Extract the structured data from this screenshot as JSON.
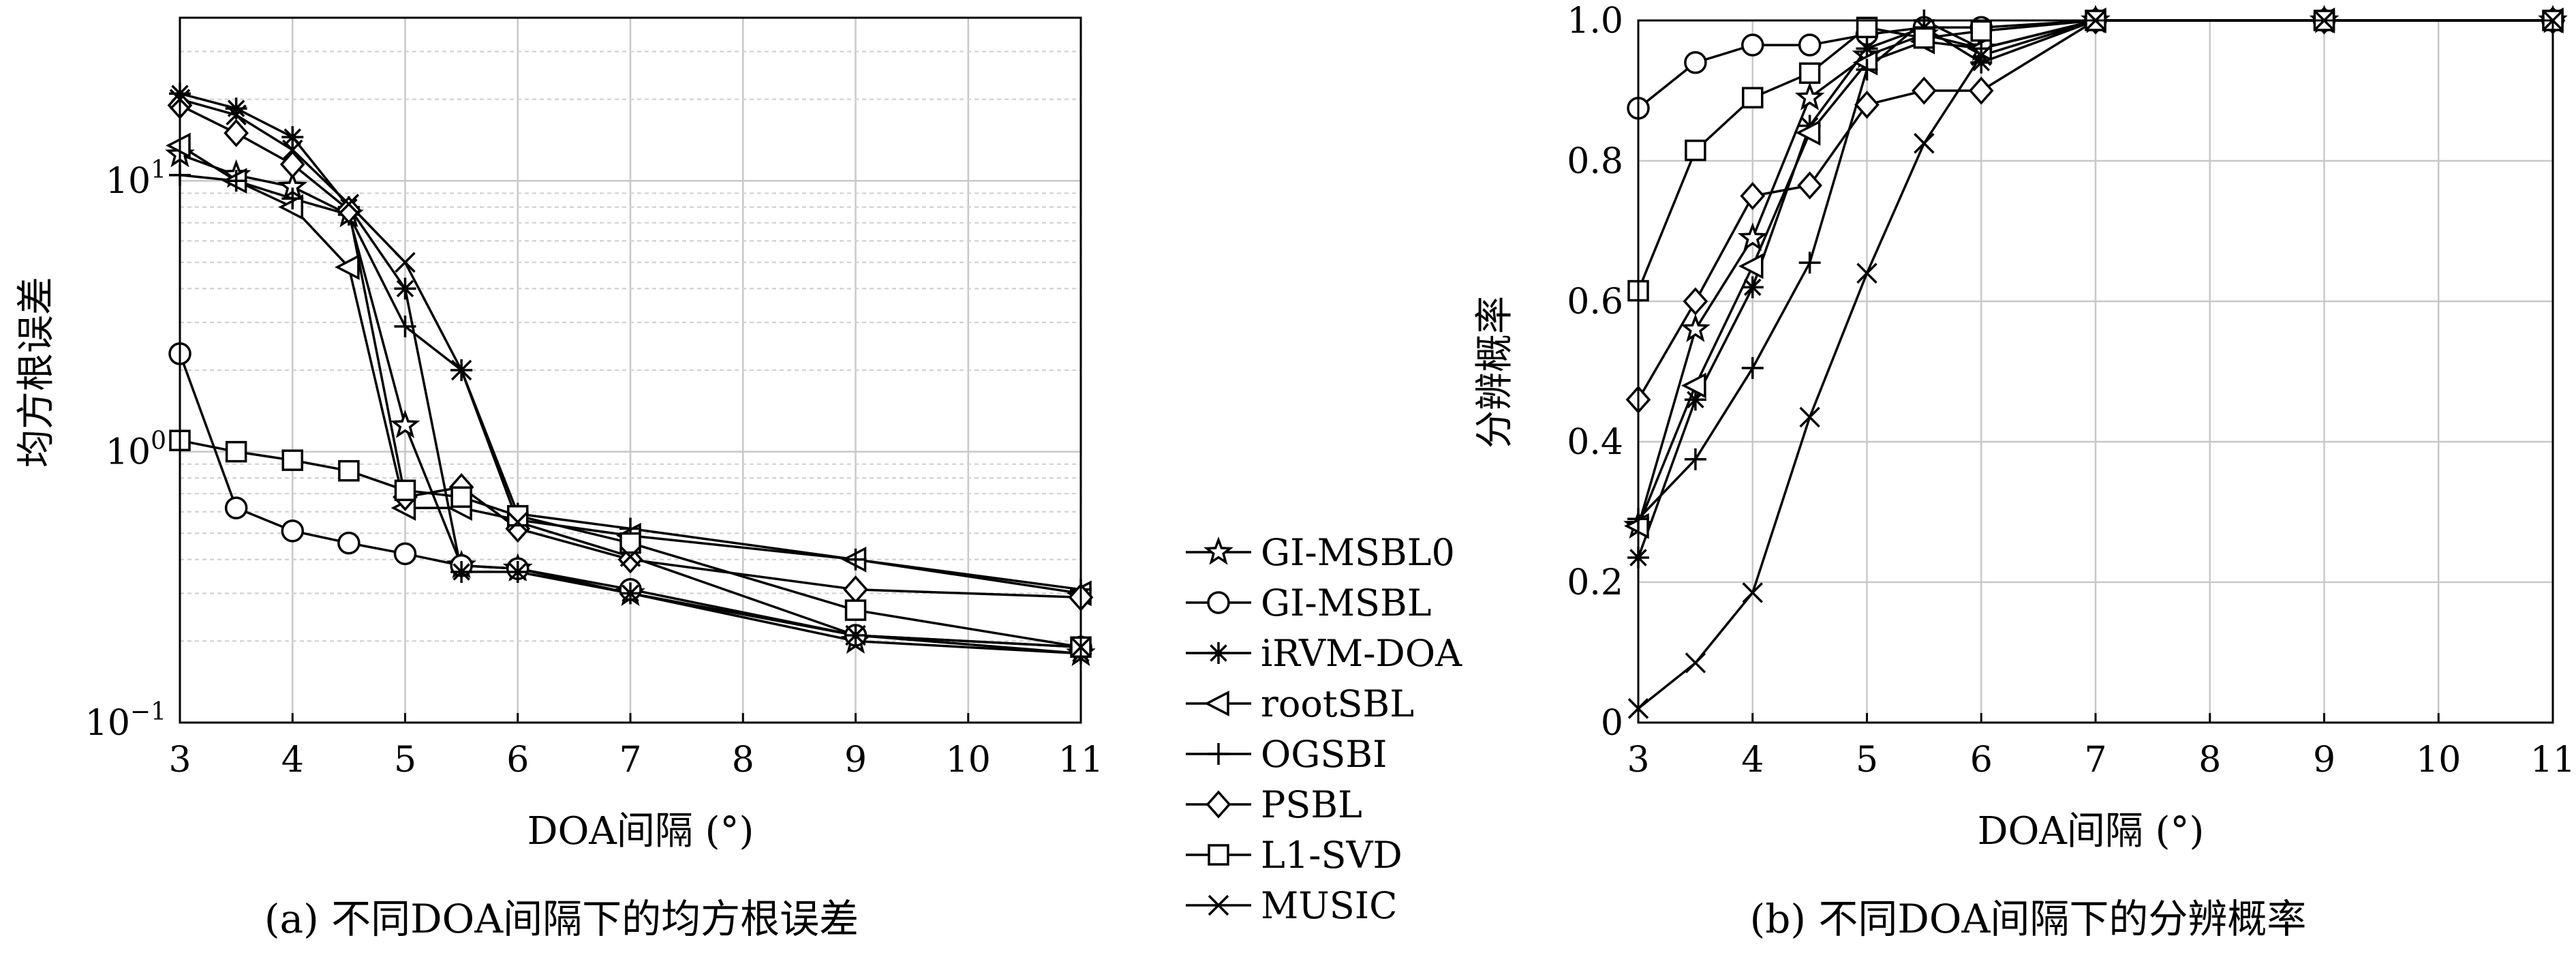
{
  "chart_data": [
    {
      "type": "line",
      "caption": "(a) 不同DOA间隔下的均方根误差",
      "xlabel": "DOA间隔 (°)",
      "ylabel": "均方根误差",
      "yscale": "log",
      "xlim": [
        3,
        11
      ],
      "ylim": [
        0.1,
        40
      ],
      "xticks": [
        3,
        4,
        5,
        6,
        7,
        8,
        9,
        10,
        11
      ],
      "yticks": [
        {
          "value": 0.1,
          "base": "10",
          "exp": "−1"
        },
        {
          "value": 1,
          "base": "10",
          "exp": "0"
        },
        {
          "value": 10,
          "base": "10",
          "exp": "1"
        }
      ],
      "grid": true,
      "x": [
        3,
        3.5,
        4,
        4.5,
        5,
        5.5,
        6,
        7,
        9,
        11
      ],
      "series": [
        {
          "name": "GI-MSBL0",
          "marker": "star",
          "values": [
            12.5,
            10.5,
            9.5,
            7.5,
            1.25,
            0.38,
            0.37,
            0.3,
            0.2,
            0.18
          ]
        },
        {
          "name": "GI-MSBL",
          "marker": "circle",
          "values": [
            2.3,
            0.62,
            0.51,
            0.46,
            0.42,
            0.38,
            0.37,
            0.31,
            0.21,
            0.19
          ]
        },
        {
          "name": "iRVM-DOA",
          "marker": "asterisk",
          "values": [
            21,
            18.5,
            14.5,
            8,
            4,
            0.36,
            0.36,
            0.3,
            0.21,
            0.18
          ]
        },
        {
          "name": "rootSBL",
          "marker": "triangle-left",
          "values": [
            13.5,
            10,
            8,
            4.8,
            0.62,
            0.62,
            0.56,
            0.49,
            0.4,
            0.3
          ]
        },
        {
          "name": "OGSBI",
          "marker": "plus",
          "values": [
            10.5,
            10,
            8.6,
            7.5,
            2.9,
            2,
            0.59,
            0.52,
            0.4,
            0.31
          ]
        },
        {
          "name": "PSBL",
          "marker": "diamond",
          "values": [
            19,
            15,
            11.5,
            7.8,
            0.68,
            0.74,
            0.52,
            0.4,
            0.31,
            0.29
          ]
        },
        {
          "name": "L1-SVD",
          "marker": "square",
          "values": [
            1.1,
            1,
            0.93,
            0.85,
            0.72,
            0.68,
            0.58,
            0.46,
            0.26,
            0.19
          ]
        },
        {
          "name": "MUSIC",
          "marker": "x",
          "values": [
            20,
            17.5,
            13,
            8.2,
            5,
            2,
            0.55,
            0.41,
            0.21,
            0.19
          ]
        }
      ]
    },
    {
      "type": "line",
      "caption": "(b) 不同DOA间隔下的分辨概率",
      "xlabel": "DOA间隔 (°)",
      "ylabel": "分辨概率",
      "yscale": "linear",
      "xlim": [
        3,
        11
      ],
      "ylim": [
        0,
        1
      ],
      "xticks": [
        3,
        4,
        5,
        6,
        7,
        8,
        9,
        10,
        11
      ],
      "yticks": [
        "0",
        "0.2",
        "0.4",
        "0.6",
        "0.8",
        "1.0"
      ],
      "grid": true,
      "x": [
        3,
        3.5,
        4,
        4.5,
        5,
        5.5,
        6,
        7,
        9,
        11
      ],
      "series": [
        {
          "name": "GI-MSBL0",
          "marker": "star",
          "values": [
            0.28,
            0.56,
            0.69,
            0.89,
            0.95,
            0.98,
            0.96,
            1,
            1,
            1
          ]
        },
        {
          "name": "GI-MSBL",
          "marker": "circle",
          "values": [
            0.875,
            0.94,
            0.965,
            0.965,
            0.98,
            0.99,
            0.99,
            1,
            1,
            1
          ]
        },
        {
          "name": "iRVM-DOA",
          "marker": "asterisk",
          "values": [
            0.235,
            0.46,
            0.62,
            0.85,
            0.96,
            0.99,
            0.94,
            1,
            1,
            1
          ]
        },
        {
          "name": "rootSBL",
          "marker": "triangle-left",
          "values": [
            0.28,
            0.48,
            0.65,
            0.84,
            0.94,
            0.97,
            0.96,
            1,
            1,
            1
          ]
        },
        {
          "name": "OGSBI",
          "marker": "plus",
          "values": [
            0.29,
            0.375,
            0.505,
            0.655,
            0.93,
            1,
            0.96,
            1,
            1,
            1
          ]
        },
        {
          "name": "PSBL",
          "marker": "diamond",
          "values": [
            0.46,
            0.6,
            0.75,
            0.765,
            0.88,
            0.9,
            0.9,
            1,
            1,
            1
          ]
        },
        {
          "name": "L1-SVD",
          "marker": "square",
          "values": [
            0.615,
            0.815,
            0.89,
            0.925,
            0.99,
            0.975,
            0.985,
            1,
            1,
            1
          ]
        },
        {
          "name": "MUSIC",
          "marker": "x",
          "values": [
            0.02,
            0.085,
            0.185,
            0.435,
            0.64,
            0.825,
            0.95,
            1,
            1,
            1
          ]
        }
      ]
    }
  ],
  "legend": [
    {
      "label": "GI-MSBL0",
      "marker": "star"
    },
    {
      "label": "GI-MSBL",
      "marker": "circle"
    },
    {
      "label": "iRVM-DOA",
      "marker": "asterisk"
    },
    {
      "label": "rootSBL",
      "marker": "triangle-left"
    },
    {
      "label": "OGSBI",
      "marker": "plus"
    },
    {
      "label": "PSBL",
      "marker": "diamond"
    },
    {
      "label": "L1-SVD",
      "marker": "square"
    },
    {
      "label": "MUSIC",
      "marker": "x"
    }
  ]
}
